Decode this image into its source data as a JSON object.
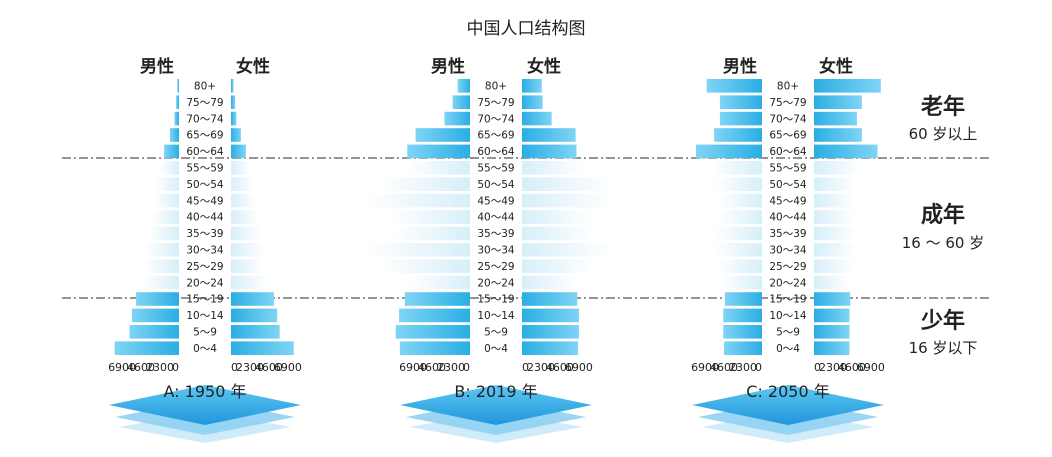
{
  "title": "中国人口结构图",
  "male_label": "男性",
  "female_label": "女性",
  "age_groups": [
    "80+",
    "75～79",
    "70～74",
    "65～69",
    "60～64",
    "55～59",
    "50～54",
    "45～49",
    "40～44",
    "35～39",
    "30～34",
    "25～29",
    "20～24",
    "15～19",
    "10～14",
    "5～9",
    "0～4"
  ],
  "zones": [
    {
      "title": "老年",
      "subtitle": "60 岁以上"
    },
    {
      "title": "成年",
      "subtitle": "16 ～ 60 岁"
    },
    {
      "title": "少年",
      "subtitle": "16 岁以下"
    }
  ],
  "colors": {
    "old": "#33b6e6",
    "adult": "#e7f4fb",
    "young": "#33b6e6",
    "divider": "#555555",
    "text": "#222222"
  },
  "chart_data": [
    {
      "type": "bar",
      "label": "A: 1950 年",
      "categories": [
        "80+",
        "75～79",
        "70～74",
        "65～69",
        "60～64",
        "55～59",
        "50～54",
        "45～49",
        "40～44",
        "35～39",
        "30～34",
        "25～29",
        "20～24",
        "15～19",
        "10～14",
        "5～9",
        "0～4"
      ],
      "series": [
        {
          "name": "男性",
          "values": [
            200,
            350,
            550,
            1100,
            1800,
            2300,
            2800,
            3100,
            3300,
            3700,
            4100,
            4200,
            4500,
            5200,
            5700,
            6000,
            7800
          ]
        },
        {
          "name": "女性",
          "values": [
            300,
            500,
            650,
            1200,
            1800,
            2300,
            2700,
            3000,
            3300,
            3600,
            4100,
            4000,
            4400,
            5200,
            5600,
            5900,
            7600
          ]
        }
      ],
      "xticks_male": [
        "6900",
        "4600",
        "2300",
        "0"
      ],
      "xticks_female": [
        "0",
        "2300",
        "4600",
        "6900"
      ]
    },
    {
      "type": "bar",
      "label": "B: 2019 年",
      "categories": [
        "80+",
        "75～79",
        "70～74",
        "65～69",
        "60～64",
        "55～59",
        "50～54",
        "45～49",
        "40～44",
        "35～39",
        "30～34",
        "25～29",
        "20～24",
        "15～19",
        "10～14",
        "5～9",
        "0～4"
      ],
      "series": [
        {
          "name": "男性",
          "values": [
            1500,
            2100,
            3100,
            6600,
            7600,
            7800,
            11000,
            12500,
            9800,
            9200,
            12500,
            10800,
            7200,
            7900,
            8600,
            9000,
            8500
          ]
        },
        {
          "name": "女性",
          "values": [
            2400,
            2500,
            3600,
            6500,
            6600,
            7500,
            10900,
            10600,
            8400,
            8600,
            10900,
            8700,
            6700,
            6700,
            6900,
            6900,
            6800
          ]
        }
      ],
      "xticks_male": [
        "6900",
        "4600",
        "2300",
        "0"
      ],
      "xticks_female": [
        "0",
        "2300",
        "4600",
        "6900"
      ]
    },
    {
      "type": "bar",
      "label": "C: 2050 年",
      "categories": [
        "80+",
        "75～79",
        "70～74",
        "65～69",
        "60～64",
        "55～59",
        "50～54",
        "45～49",
        "40～44",
        "35～39",
        "30～34",
        "25～29",
        "20～24",
        "15～19",
        "10～14",
        "5～9",
        "0～4"
      ],
      "series": [
        {
          "name": "男性",
          "values": [
            6700,
            5100,
            5100,
            5800,
            8000,
            6200,
            5700,
            5400,
            5300,
            5800,
            5800,
            5400,
            4900,
            4500,
            4700,
            4700,
            4600
          ]
        },
        {
          "name": "女性",
          "values": [
            8100,
            5800,
            5200,
            5800,
            7700,
            5700,
            5000,
            4800,
            4700,
            5200,
            5100,
            4700,
            4300,
            4400,
            4300,
            4300,
            4300
          ]
        }
      ],
      "xticks_male": [
        "6900",
        "4600",
        "2300",
        "0"
      ],
      "xticks_female": [
        "0",
        "2300",
        "4600",
        "6900"
      ]
    }
  ]
}
